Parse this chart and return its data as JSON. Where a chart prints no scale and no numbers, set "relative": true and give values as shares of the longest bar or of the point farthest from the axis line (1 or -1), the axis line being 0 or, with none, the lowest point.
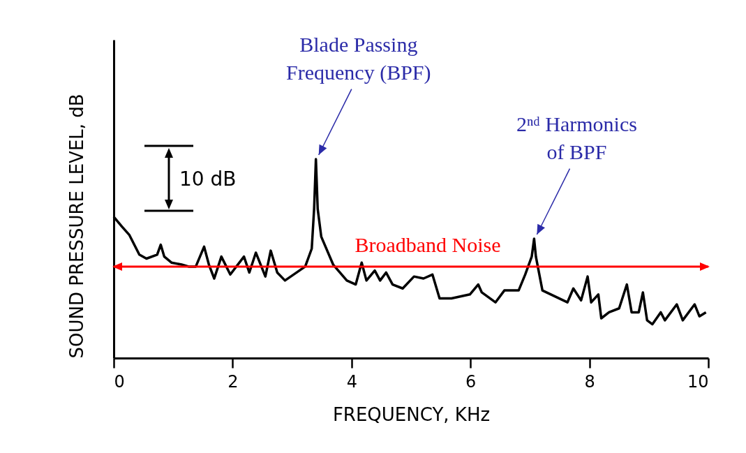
{
  "chart_data": {
    "type": "line",
    "relative": true,
    "xlabel": "FREQUENCY, KHz",
    "ylabel": "SOUND PRESSURE LEVEL, dB",
    "xlim": [
      0,
      10
    ],
    "xticks": [
      0,
      2,
      4,
      6,
      8,
      10
    ],
    "grid": false,
    "marker": "none",
    "line_style": "solid",
    "x": [
      0,
      0.14,
      0.26,
      0.43,
      0.55,
      0.73,
      0.79,
      0.85,
      0.97,
      1.14,
      1.26,
      1.38,
      1.52,
      1.6,
      1.69,
      1.81,
      1.96,
      2.19,
      2.28,
      2.39,
      2.55,
      2.64,
      2.75,
      2.88,
      3.22,
      3.33,
      3.37,
      3.4,
      3.43,
      3.49,
      3.69,
      3.92,
      4.07,
      4.17,
      4.25,
      4.39,
      4.48,
      4.58,
      4.69,
      4.86,
      5.05,
      5.21,
      5.36,
      5.48,
      5.68,
      5.99,
      6.13,
      6.19,
      6.42,
      6.57,
      6.81,
      6.92,
      7.03,
      7.07,
      7.1,
      7.21,
      7.63,
      7.73,
      7.86,
      7.97,
      8.03,
      8.15,
      8.2,
      8.33,
      8.5,
      8.63,
      8.71,
      8.83,
      8.9,
      8.97,
      9.06,
      9.2,
      9.27,
      9.47,
      9.57,
      9.77,
      9.85,
      9.96
    ],
    "series": [
      {
        "color": "#000000",
        "values": [
          0.71,
          0.66,
          0.62,
          0.52,
          0.5,
          0.52,
          0.57,
          0.51,
          0.48,
          0.47,
          0.46,
          0.46,
          0.56,
          0.47,
          0.4,
          0.51,
          0.42,
          0.51,
          0.43,
          0.53,
          0.41,
          0.54,
          0.43,
          0.39,
          0.46,
          0.55,
          0.75,
          1,
          0.75,
          0.61,
          0.47,
          0.39,
          0.37,
          0.48,
          0.39,
          0.44,
          0.39,
          0.43,
          0.37,
          0.35,
          0.41,
          0.4,
          0.42,
          0.3,
          0.3,
          0.32,
          0.37,
          0.33,
          0.28,
          0.34,
          0.34,
          0.42,
          0.51,
          0.6,
          0.51,
          0.34,
          0.28,
          0.35,
          0.29,
          0.41,
          0.28,
          0.32,
          0.2,
          0.23,
          0.25,
          0.37,
          0.23,
          0.23,
          0.33,
          0.19,
          0.17,
          0.23,
          0.19,
          0.27,
          0.19,
          0.27,
          0.21,
          0.23
        ]
      }
    ],
    "ref_lines": [
      {
        "axis": "y",
        "value": 0.46,
        "label": "Broadband Noise",
        "color": "#ff0000"
      }
    ],
    "annotations": [
      {
        "text": "Blade Passing Frequency (BPF)",
        "x": 3.4,
        "y": 1
      },
      {
        "text": "2ⁿᵈ Harmonics of BPF",
        "x": 7.07,
        "y": 0.6
      },
      "10 dB"
    ]
  }
}
